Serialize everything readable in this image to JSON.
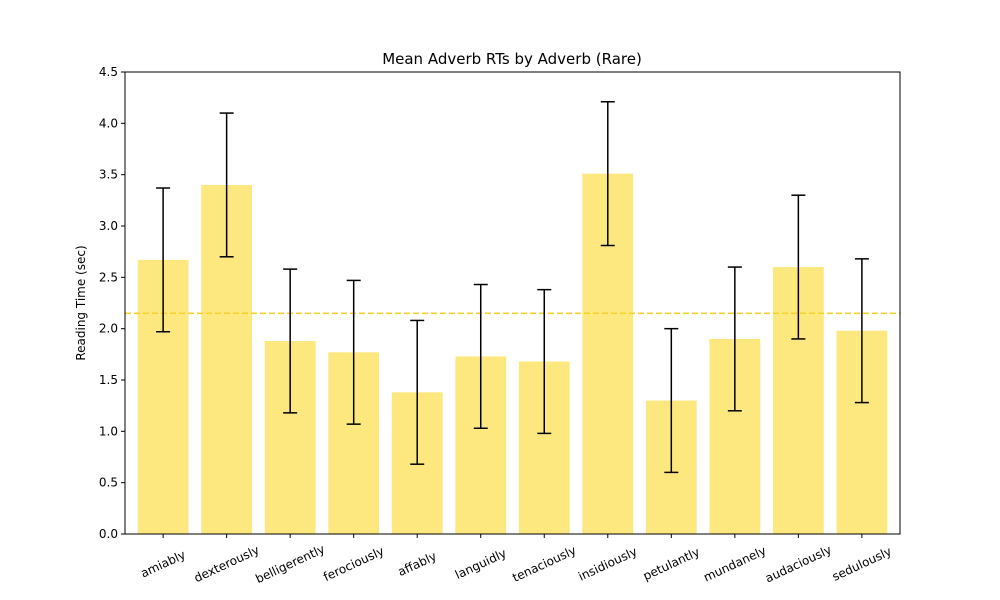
{
  "chart_data": {
    "type": "bar",
    "title": "Mean Adverb RTs by Adverb (Rare)",
    "xlabel": "",
    "ylabel": "Reading Time (sec)",
    "ylim": [
      0,
      4.5
    ],
    "yticks": [
      "0.0",
      "0.5",
      "1.0",
      "1.5",
      "2.0",
      "2.5",
      "3.0",
      "3.5",
      "4.0",
      "4.5"
    ],
    "categories": [
      "amiably",
      "dexterously",
      "belligerently",
      "ferociously",
      "affably",
      "languidly",
      "tenaciously",
      "insidiously",
      "petulantly",
      "mundanely",
      "audaciously",
      "sedulously"
    ],
    "values": [
      2.67,
      3.4,
      1.88,
      1.77,
      1.38,
      1.73,
      1.68,
      3.51,
      1.3,
      1.9,
      2.6,
      1.98
    ],
    "error": [
      0.7,
      0.7,
      0.7,
      0.7,
      0.7,
      0.7,
      0.7,
      0.7,
      0.7,
      0.7,
      0.7,
      0.7
    ],
    "reference_line": 2.15,
    "bar_color": "#fde880",
    "line_color": "#f5d130",
    "errorbar_color": "#000000",
    "grid": false,
    "legend": "none"
  }
}
